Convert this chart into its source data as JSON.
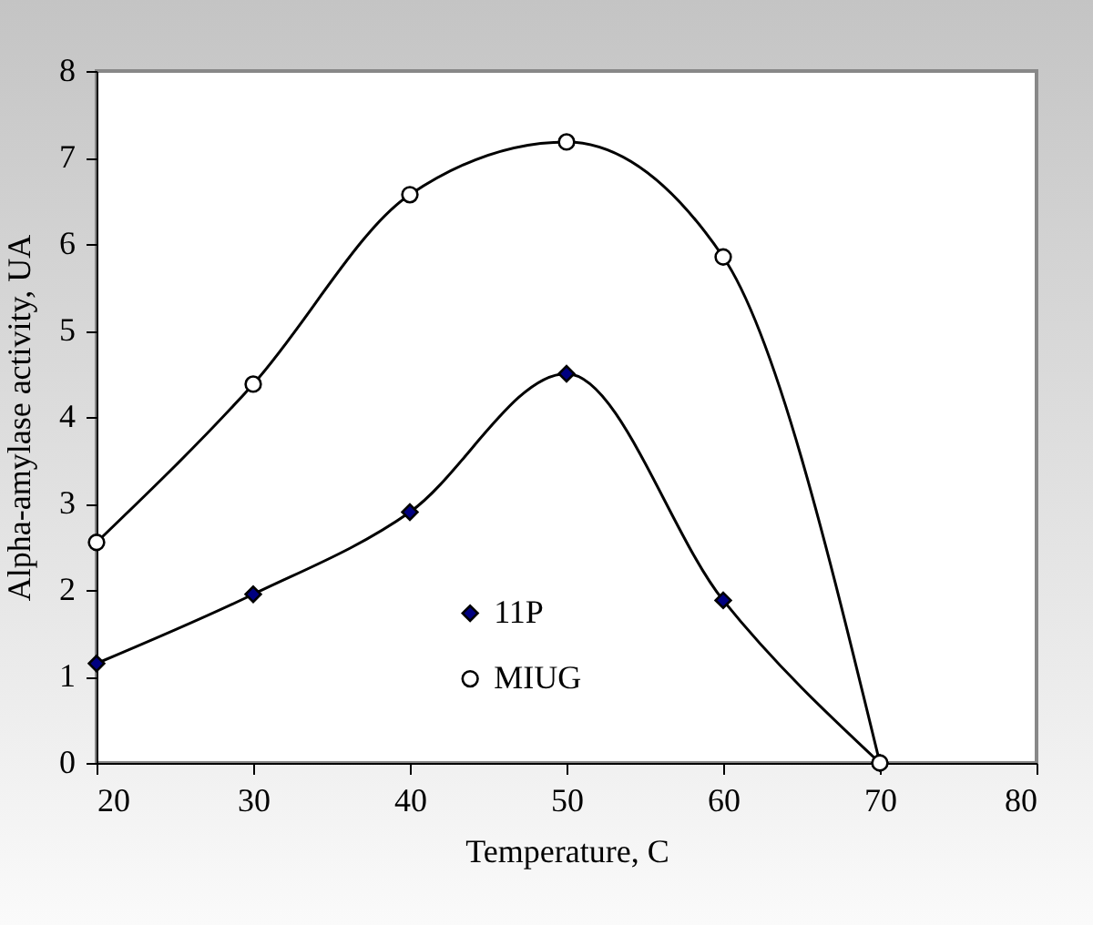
{
  "chart_data": {
    "type": "line",
    "xlabel": "Temperature, C",
    "ylabel": "Alpha-amylase activity, UA",
    "x": [
      20,
      30,
      40,
      50,
      60,
      70
    ],
    "series": [
      {
        "name": "11P",
        "color": "#000080",
        "marker": "diamond",
        "values": [
          1.15,
          1.95,
          2.9,
          4.5,
          1.88,
          0
        ]
      },
      {
        "name": "MIUG",
        "color": "#ffffff",
        "marker": "circle",
        "values": [
          2.55,
          4.38,
          6.57,
          7.18,
          5.85,
          0
        ]
      }
    ],
    "xlim": [
      20,
      80
    ],
    "xticks": [
      20,
      30,
      40,
      50,
      60,
      70,
      80
    ],
    "ylim": [
      0,
      8
    ],
    "yticks": [
      0,
      1,
      2,
      3,
      4,
      5,
      6,
      7,
      8
    ],
    "grid": false,
    "legend": "bottom",
    "line_style": "solid"
  }
}
